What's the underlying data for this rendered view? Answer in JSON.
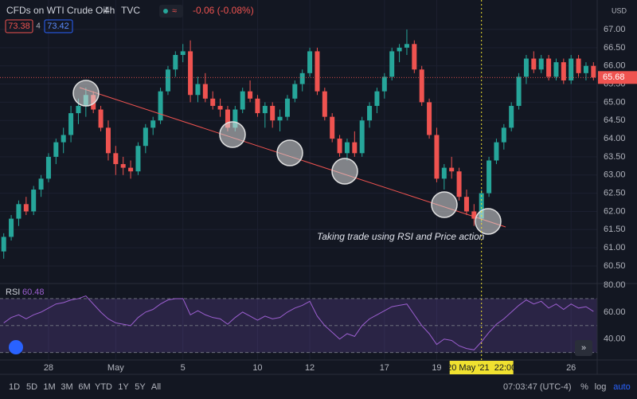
{
  "chart_data": [
    {
      "type": "candlestick",
      "title": "CFDs on WTI Crude Oil",
      "interval": "4h",
      "source": "TVC",
      "change": "-0.06 (-0.08%)",
      "bid": 73.38,
      "spread": 4,
      "ask": 73.42,
      "y_unit": "USD",
      "annotation": "Taking trade using RSI and Price action",
      "up_color": "#26a69a",
      "down_color": "#ef5350",
      "crosshair_index": 64,
      "grid": true,
      "categories": [
        null,
        null,
        null,
        null,
        null,
        null,
        "28",
        null,
        null,
        null,
        null,
        null,
        null,
        null,
        null,
        "May",
        null,
        null,
        null,
        null,
        null,
        null,
        null,
        null,
        "5",
        null,
        null,
        null,
        null,
        null,
        null,
        null,
        null,
        null,
        "10",
        null,
        null,
        null,
        null,
        null,
        null,
        "12",
        null,
        null,
        null,
        null,
        null,
        null,
        null,
        null,
        null,
        "17",
        null,
        null,
        null,
        null,
        null,
        null,
        "19",
        null,
        null,
        null,
        null,
        null,
        "20 May '21  22:00",
        null,
        null,
        null,
        null,
        null,
        null,
        null,
        null,
        null,
        null,
        null,
        "26",
        null,
        null,
        null
      ],
      "open": [
        60.9,
        61.3,
        61.8,
        62.2,
        62.0,
        62.6,
        62.9,
        63.5,
        63.9,
        64.1,
        64.7,
        64.9,
        65.2,
        64.8,
        64.3,
        63.6,
        63.3,
        63.2,
        63.1,
        63.8,
        64.3,
        64.5,
        65.3,
        65.9,
        66.3,
        66.4,
        65.2,
        65.5,
        65.1,
        64.9,
        64.8,
        64.3,
        64.8,
        65.3,
        65.1,
        64.7,
        64.9,
        64.5,
        64.6,
        65.1,
        65.5,
        65.8,
        66.4,
        65.3,
        64.6,
        64.0,
        63.6,
        63.9,
        63.6,
        64.5,
        64.9,
        65.3,
        65.7,
        66.4,
        66.5,
        66.6,
        65.9,
        65.0,
        64.1,
        62.9,
        63.2,
        63.1,
        62.4,
        62.0,
        61.8,
        62.5,
        63.4,
        63.9,
        64.3,
        64.9,
        65.7,
        66.2,
        65.9,
        66.2,
        65.7,
        66.1,
        65.6,
        66.2,
        65.8,
        66.0
      ],
      "high": [
        61.4,
        61.9,
        62.3,
        62.4,
        62.7,
        63.0,
        63.6,
        64.0,
        64.3,
        64.9,
        65.1,
        65.4,
        65.3,
        64.9,
        64.5,
        63.8,
        63.5,
        63.4,
        63.9,
        64.4,
        64.6,
        65.4,
        66.0,
        66.4,
        66.6,
        66.7,
        65.7,
        65.8,
        65.3,
        65.1,
        64.9,
        64.9,
        65.4,
        65.6,
        65.2,
        65.0,
        65.0,
        64.8,
        65.2,
        65.6,
        65.9,
        66.5,
        66.5,
        65.4,
        64.7,
        64.1,
        64.0,
        64.2,
        64.6,
        65.0,
        65.4,
        65.8,
        66.5,
        66.6,
        67.0,
        66.7,
        66.0,
        65.1,
        64.3,
        63.3,
        63.5,
        63.2,
        62.6,
        62.2,
        62.6,
        63.5,
        64.0,
        64.4,
        65.0,
        65.8,
        66.3,
        66.4,
        66.3,
        66.3,
        66.2,
        66.2,
        66.3,
        66.3,
        66.1,
        66.1
      ],
      "low": [
        60.7,
        61.2,
        61.6,
        61.9,
        61.9,
        62.4,
        62.8,
        63.3,
        63.6,
        63.9,
        64.4,
        64.6,
        64.7,
        64.2,
        63.4,
        63.0,
        63.0,
        62.9,
        63.0,
        63.6,
        64.1,
        64.4,
        65.2,
        65.7,
        66.1,
        65.0,
        65.0,
        65.0,
        64.8,
        64.6,
        64.2,
        64.2,
        64.7,
        65.0,
        64.6,
        64.3,
        64.3,
        64.2,
        64.5,
        65.0,
        65.3,
        65.7,
        65.2,
        64.5,
        63.9,
        63.5,
        63.4,
        63.5,
        63.5,
        64.3,
        64.7,
        65.1,
        65.6,
        66.1,
        66.3,
        65.8,
        64.9,
        64.0,
        62.8,
        62.6,
        62.9,
        62.3,
        61.9,
        61.6,
        61.7,
        62.4,
        63.3,
        63.7,
        64.2,
        64.8,
        65.5,
        65.8,
        65.8,
        65.6,
        65.6,
        65.5,
        65.5,
        65.7,
        65.6,
        65.6
      ],
      "close": [
        61.3,
        61.8,
        62.2,
        62.0,
        62.6,
        62.9,
        63.5,
        63.9,
        64.1,
        64.7,
        64.9,
        65.2,
        64.8,
        64.3,
        63.6,
        63.3,
        63.2,
        63.1,
        63.8,
        64.3,
        64.5,
        65.3,
        65.9,
        66.3,
        66.4,
        65.2,
        65.5,
        65.1,
        64.9,
        64.8,
        64.3,
        64.8,
        65.3,
        65.1,
        64.7,
        64.9,
        64.5,
        64.6,
        65.1,
        65.5,
        65.8,
        66.4,
        65.3,
        64.6,
        64.0,
        63.6,
        63.9,
        63.6,
        64.5,
        64.9,
        65.3,
        65.7,
        66.4,
        66.5,
        66.6,
        65.9,
        65.0,
        64.1,
        62.9,
        63.2,
        63.1,
        62.4,
        62.0,
        61.8,
        62.5,
        63.4,
        63.9,
        64.3,
        64.9,
        65.7,
        66.2,
        65.9,
        66.2,
        65.7,
        66.1,
        65.6,
        66.2,
        65.8,
        66.0,
        65.68
      ],
      "ylim": [
        60.04,
        67.81
      ],
      "yticks": [
        {
          "value": 60.5,
          "label": "60.50"
        },
        {
          "value": 61,
          "label": "61.00"
        },
        {
          "value": 61.5,
          "label": "61.50"
        },
        {
          "value": 62,
          "label": "62.00"
        },
        {
          "value": 62.5,
          "label": "62.50"
        },
        {
          "value": 63,
          "label": "63.00"
        },
        {
          "value": 63.5,
          "label": "63.50"
        },
        {
          "value": 64,
          "label": "64.00"
        },
        {
          "value": 64.5,
          "label": "64.50"
        },
        {
          "value": 65,
          "label": "65.00"
        },
        {
          "value": 65.5,
          "label": "65.50"
        },
        {
          "value": 66,
          "label": "66.00"
        },
        {
          "value": 66.5,
          "label": "66.50"
        },
        {
          "value": 67,
          "label": "67.00"
        }
      ]
    },
    {
      "type": "line",
      "name": "RSI",
      "color": "#9c5fd0",
      "band_color": "rgba(126,87,194,0.22)",
      "values": [
        52,
        56,
        58,
        55,
        58,
        60,
        63,
        66,
        67,
        69,
        70,
        72,
        66,
        60,
        55,
        52,
        51,
        50,
        56,
        60,
        62,
        66,
        69,
        70,
        70,
        58,
        61,
        58,
        56,
        55,
        51,
        56,
        60,
        57,
        54,
        57,
        55,
        56,
        60,
        63,
        65,
        68,
        57,
        50,
        45,
        40,
        44,
        42,
        50,
        55,
        58,
        61,
        64,
        65,
        66,
        58,
        50,
        44,
        36,
        40,
        39,
        35,
        33,
        32,
        38,
        45,
        51,
        55,
        60,
        65,
        69,
        66,
        68,
        63,
        66,
        62,
        66,
        63,
        64,
        60.48
      ],
      "bands": [
        70,
        50,
        30
      ],
      "ylim": [
        24.5,
        80.6
      ],
      "yticks": [
        {
          "value": 80,
          "label": "80.00"
        },
        {
          "value": 60,
          "label": "60.00"
        },
        {
          "value": 40,
          "label": "40.00"
        }
      ]
    }
  ],
  "ui": {
    "ranges": [
      "1D",
      "5D",
      "1M",
      "3M",
      "6M",
      "YTD",
      "1Y",
      "5Y",
      "All"
    ],
    "clock": "07:03:47 (UTC-4)",
    "percent": "%",
    "log": "log",
    "auto": "auto"
  }
}
